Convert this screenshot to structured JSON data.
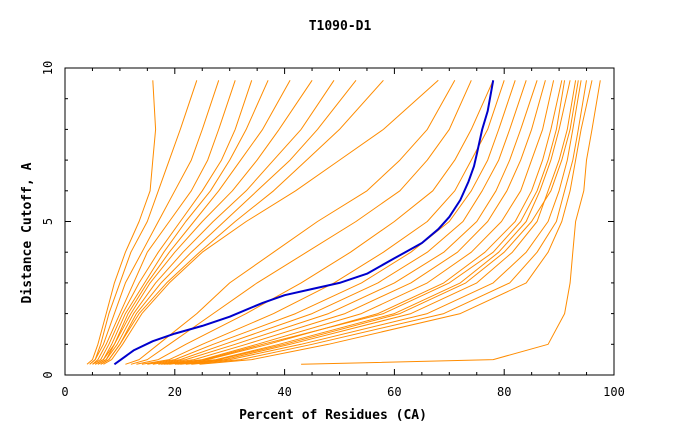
{
  "chart_data": {
    "type": "line",
    "title": "T1090-D1",
    "xlabel": "Percent of Residues (CA)",
    "ylabel": "Distance Cutoff, A",
    "xlim": [
      0,
      100
    ],
    "ylim": [
      0,
      10
    ],
    "xticks": [
      0,
      20,
      40,
      60,
      80,
      100
    ],
    "yticks": [
      0,
      5,
      10
    ],
    "grid": false,
    "colors": {
      "models": "#ff8c00",
      "highlight": "#0000cc",
      "axes": "#000000"
    },
    "highlight": {
      "x": [
        9.0,
        12.5,
        16.0,
        20.0,
        25.0,
        30.0,
        36.0,
        40.0,
        45.0,
        50.0,
        55.0,
        60.0,
        65.0,
        68.0,
        70.0,
        72.0,
        73.5,
        74.5,
        75.0,
        75.5,
        76.0,
        77.0,
        78.0
      ],
      "y": [
        0.35,
        0.8,
        1.1,
        1.35,
        1.6,
        1.9,
        2.35,
        2.6,
        2.8,
        3.0,
        3.3,
        3.8,
        4.3,
        4.75,
        5.15,
        5.7,
        6.3,
        6.8,
        7.2,
        7.6,
        8.0,
        8.6,
        9.6
      ]
    },
    "models": [
      {
        "x": [
          16.0,
          16.5,
          16.0,
          15.5,
          13.5,
          11.0,
          9.0,
          7.5,
          6.0,
          5.0,
          4.0
        ],
        "y": [
          9.6,
          8.0,
          7.0,
          6.0,
          5.0,
          4.0,
          3.0,
          2.0,
          1.0,
          0.5,
          0.35
        ]
      },
      {
        "x": [
          24.0,
          21.0,
          19.0,
          17.0,
          15.0,
          12.0,
          10.0,
          8.0,
          6.5,
          5.5,
          4.5
        ],
        "y": [
          9.6,
          8.0,
          7.0,
          6.0,
          5.0,
          4.0,
          3.0,
          2.0,
          1.0,
          0.5,
          0.35
        ]
      },
      {
        "x": [
          28.0,
          25.0,
          23.0,
          20.0,
          17.0,
          14.0,
          11.0,
          9.0,
          7.0,
          5.5,
          4.5
        ],
        "y": [
          9.6,
          8.0,
          7.0,
          6.0,
          5.0,
          4.0,
          3.0,
          2.0,
          1.0,
          0.5,
          0.35
        ]
      },
      {
        "x": [
          31.0,
          28.0,
          26.0,
          23.0,
          19.0,
          15.0,
          12.5,
          10.0,
          7.5,
          6.0,
          5.0
        ],
        "y": [
          9.6,
          8.0,
          7.0,
          6.0,
          5.0,
          4.0,
          3.0,
          2.0,
          1.0,
          0.5,
          0.35
        ]
      },
      {
        "x": [
          34.0,
          31.0,
          28.5,
          25.0,
          21.0,
          17.0,
          13.5,
          10.5,
          8.0,
          6.5,
          5.0
        ],
        "y": [
          9.6,
          8.0,
          7.0,
          6.0,
          5.0,
          4.0,
          3.0,
          2.0,
          1.0,
          0.5,
          0.35
        ]
      },
      {
        "x": [
          37.0,
          33.0,
          30.0,
          26.5,
          22.0,
          18.0,
          14.5,
          11.0,
          8.5,
          7.0,
          5.5
        ],
        "y": [
          9.6,
          8.0,
          7.0,
          6.0,
          5.0,
          4.0,
          3.0,
          2.0,
          1.0,
          0.5,
          0.35
        ]
      },
      {
        "x": [
          41.0,
          36.0,
          32.0,
          28.0,
          23.5,
          19.0,
          15.0,
          11.5,
          9.0,
          7.0,
          5.5
        ],
        "y": [
          9.6,
          8.0,
          7.0,
          6.0,
          5.0,
          4.0,
          3.0,
          2.0,
          1.0,
          0.5,
          0.35
        ]
      },
      {
        "x": [
          45.0,
          39.0,
          35.0,
          30.5,
          25.0,
          20.0,
          15.5,
          12.0,
          9.0,
          7.5,
          6.0
        ],
        "y": [
          9.6,
          8.0,
          7.0,
          6.0,
          5.0,
          4.0,
          3.0,
          2.0,
          1.0,
          0.5,
          0.35
        ]
      },
      {
        "x": [
          49.0,
          43.0,
          38.0,
          33.0,
          27.0,
          21.5,
          16.5,
          12.5,
          9.5,
          7.5,
          6.0
        ],
        "y": [
          9.6,
          8.0,
          7.0,
          6.0,
          5.0,
          4.0,
          3.0,
          2.0,
          1.0,
          0.5,
          0.35
        ]
      },
      {
        "x": [
          53.0,
          46.0,
          41.0,
          35.0,
          29.0,
          23.0,
          17.5,
          13.0,
          10.0,
          8.0,
          6.5
        ],
        "y": [
          9.6,
          8.0,
          7.0,
          6.0,
          5.0,
          4.0,
          3.0,
          2.0,
          1.0,
          0.5,
          0.35
        ]
      },
      {
        "x": [
          58.0,
          50.0,
          44.0,
          38.0,
          31.0,
          24.5,
          18.5,
          13.5,
          10.0,
          8.0,
          6.5
        ],
        "y": [
          9.6,
          8.0,
          7.0,
          6.0,
          5.0,
          4.0,
          3.0,
          2.0,
          1.0,
          0.5,
          0.35
        ]
      },
      {
        "x": [
          68.0,
          58.0,
          50.0,
          42.0,
          33.0,
          25.0,
          19.0,
          14.0,
          10.5,
          8.5,
          7.0
        ],
        "y": [
          9.6,
          8.0,
          7.0,
          6.0,
          5.0,
          4.0,
          3.0,
          2.0,
          1.0,
          0.5,
          0.35
        ]
      },
      {
        "x": [
          71.0,
          66.0,
          61.0,
          55.0,
          46.0,
          38.0,
          30.0,
          24.0,
          17.0,
          13.5,
          11.0
        ],
        "y": [
          9.6,
          8.0,
          7.0,
          6.0,
          5.0,
          4.0,
          3.0,
          2.0,
          1.0,
          0.5,
          0.35
        ]
      },
      {
        "x": [
          74.0,
          70.0,
          66.0,
          61.0,
          53.0,
          44.0,
          35.0,
          27.0,
          19.0,
          15.0,
          12.0
        ],
        "y": [
          9.6,
          8.0,
          7.0,
          6.0,
          5.0,
          4.0,
          3.0,
          2.0,
          1.0,
          0.5,
          0.35
        ]
      },
      {
        "x": [
          78.0,
          74.0,
          71.0,
          67.0,
          60.0,
          52.0,
          43.0,
          33.0,
          22.0,
          17.0,
          13.0
        ],
        "y": [
          9.6,
          8.0,
          7.0,
          6.0,
          5.0,
          4.0,
          3.0,
          2.0,
          1.0,
          0.5,
          0.35
        ]
      },
      {
        "x": [
          80.0,
          77.0,
          74.0,
          71.0,
          66.0,
          58.0,
          49.0,
          38.0,
          25.0,
          19.0,
          14.0
        ],
        "y": [
          9.6,
          8.0,
          7.0,
          6.0,
          5.0,
          4.0,
          3.0,
          2.0,
          1.0,
          0.5,
          0.35
        ]
      },
      {
        "x": [
          82.0,
          79.0,
          77.0,
          74.0,
          70.0,
          63.0,
          54.0,
          42.0,
          27.0,
          20.0,
          15.0
        ],
        "y": [
          9.6,
          8.0,
          7.0,
          6.0,
          5.0,
          4.0,
          3.0,
          2.0,
          1.0,
          0.5,
          0.35
        ]
      },
      {
        "x": [
          84.0,
          81.0,
          79.0,
          76.0,
          72.5,
          66.0,
          57.0,
          45.0,
          29.0,
          21.0,
          16.0
        ],
        "y": [
          9.6,
          8.0,
          7.0,
          6.0,
          5.0,
          4.0,
          3.0,
          2.0,
          1.0,
          0.5,
          0.35
        ]
      },
      {
        "x": [
          86.0,
          83.0,
          81.0,
          78.5,
          75.0,
          69.0,
          60.0,
          48.0,
          31.0,
          22.0,
          17.0
        ],
        "y": [
          9.6,
          8.0,
          7.0,
          6.0,
          5.0,
          4.0,
          3.0,
          2.0,
          1.0,
          0.5,
          0.35
        ]
      },
      {
        "x": [
          87.5,
          85.0,
          83.0,
          80.5,
          77.0,
          71.5,
          63.0,
          51.0,
          33.0,
          23.5,
          17.5
        ],
        "y": [
          9.6,
          8.0,
          7.0,
          6.0,
          5.0,
          4.0,
          3.0,
          2.0,
          1.0,
          0.5,
          0.35
        ]
      },
      {
        "x": [
          89.0,
          87.0,
          85.0,
          83.0,
          79.5,
          74.0,
          66.0,
          54.0,
          35.0,
          25.0,
          18.5
        ],
        "y": [
          9.6,
          8.0,
          7.0,
          6.0,
          5.0,
          4.0,
          3.0,
          2.0,
          1.0,
          0.5,
          0.35
        ]
      },
      {
        "x": [
          90.5,
          88.5,
          87.0,
          85.0,
          82.0,
          76.5,
          69.0,
          57.0,
          37.0,
          26.0,
          19.0
        ],
        "y": [
          9.6,
          8.0,
          7.0,
          6.0,
          5.0,
          4.0,
          3.0,
          2.0,
          1.0,
          0.5,
          0.35
        ]
      },
      {
        "x": [
          92.0,
          90.0,
          88.5,
          86.5,
          84.0,
          79.0,
          72.0,
          60.0,
          39.0,
          27.5,
          20.0
        ],
        "y": [
          9.6,
          8.0,
          7.0,
          6.0,
          5.0,
          4.0,
          3.0,
          2.0,
          1.0,
          0.5,
          0.35
        ]
      },
      {
        "x": [
          93.0,
          91.5,
          90.0,
          88.0,
          86.0,
          81.5,
          75.0,
          63.0,
          41.0,
          29.0,
          21.0
        ],
        "y": [
          9.6,
          8.0,
          7.0,
          6.0,
          5.0,
          4.0,
          3.0,
          2.0,
          1.0,
          0.5,
          0.35
        ]
      },
      {
        "x": [
          94.0,
          92.5,
          91.5,
          90.0,
          88.0,
          84.0,
          78.0,
          66.0,
          43.0,
          30.0,
          22.0
        ],
        "y": [
          9.6,
          8.0,
          7.0,
          6.0,
          5.0,
          4.0,
          3.0,
          2.0,
          1.0,
          0.5,
          0.35
        ]
      },
      {
        "x": [
          95.0,
          93.5,
          92.5,
          91.0,
          89.5,
          86.0,
          81.0,
          69.0,
          45.0,
          32.0,
          23.0
        ],
        "y": [
          9.6,
          8.0,
          7.0,
          6.0,
          5.0,
          4.0,
          3.0,
          2.0,
          1.0,
          0.5,
          0.35
        ]
      },
      {
        "x": [
          96.0,
          94.0,
          93.0,
          92.0,
          90.5,
          88.0,
          84.0,
          72.0,
          48.0,
          34.0,
          24.5
        ],
        "y": [
          9.6,
          8.0,
          7.0,
          6.0,
          5.0,
          4.0,
          3.0,
          2.0,
          1.0,
          0.5,
          0.35
        ]
      },
      {
        "x": [
          91.0,
          89.5,
          88.0,
          86.0,
          83.0,
          78.0,
          70.0,
          58.0,
          36.0,
          25.5,
          18.0
        ],
        "y": [
          9.6,
          8.0,
          7.0,
          6.0,
          5.0,
          4.0,
          3.0,
          2.0,
          1.0,
          0.5,
          0.35
        ]
      },
      {
        "x": [
          93.5,
          92.0,
          90.5,
          88.5,
          85.0,
          80.0,
          73.0,
          61.0,
          40.0,
          28.0,
          20.5
        ],
        "y": [
          9.6,
          8.0,
          7.0,
          6.0,
          5.0,
          4.0,
          3.0,
          2.0,
          1.0,
          0.5,
          0.35
        ]
      },
      {
        "x": [
          97.5,
          96.0,
          95.0,
          94.5,
          93.0,
          92.5,
          92.0,
          91.0,
          88.0,
          78.0,
          43.0
        ],
        "y": [
          9.6,
          8.0,
          7.0,
          6.0,
          5.0,
          4.0,
          3.0,
          2.0,
          1.0,
          0.5,
          0.35
        ]
      }
    ]
  }
}
